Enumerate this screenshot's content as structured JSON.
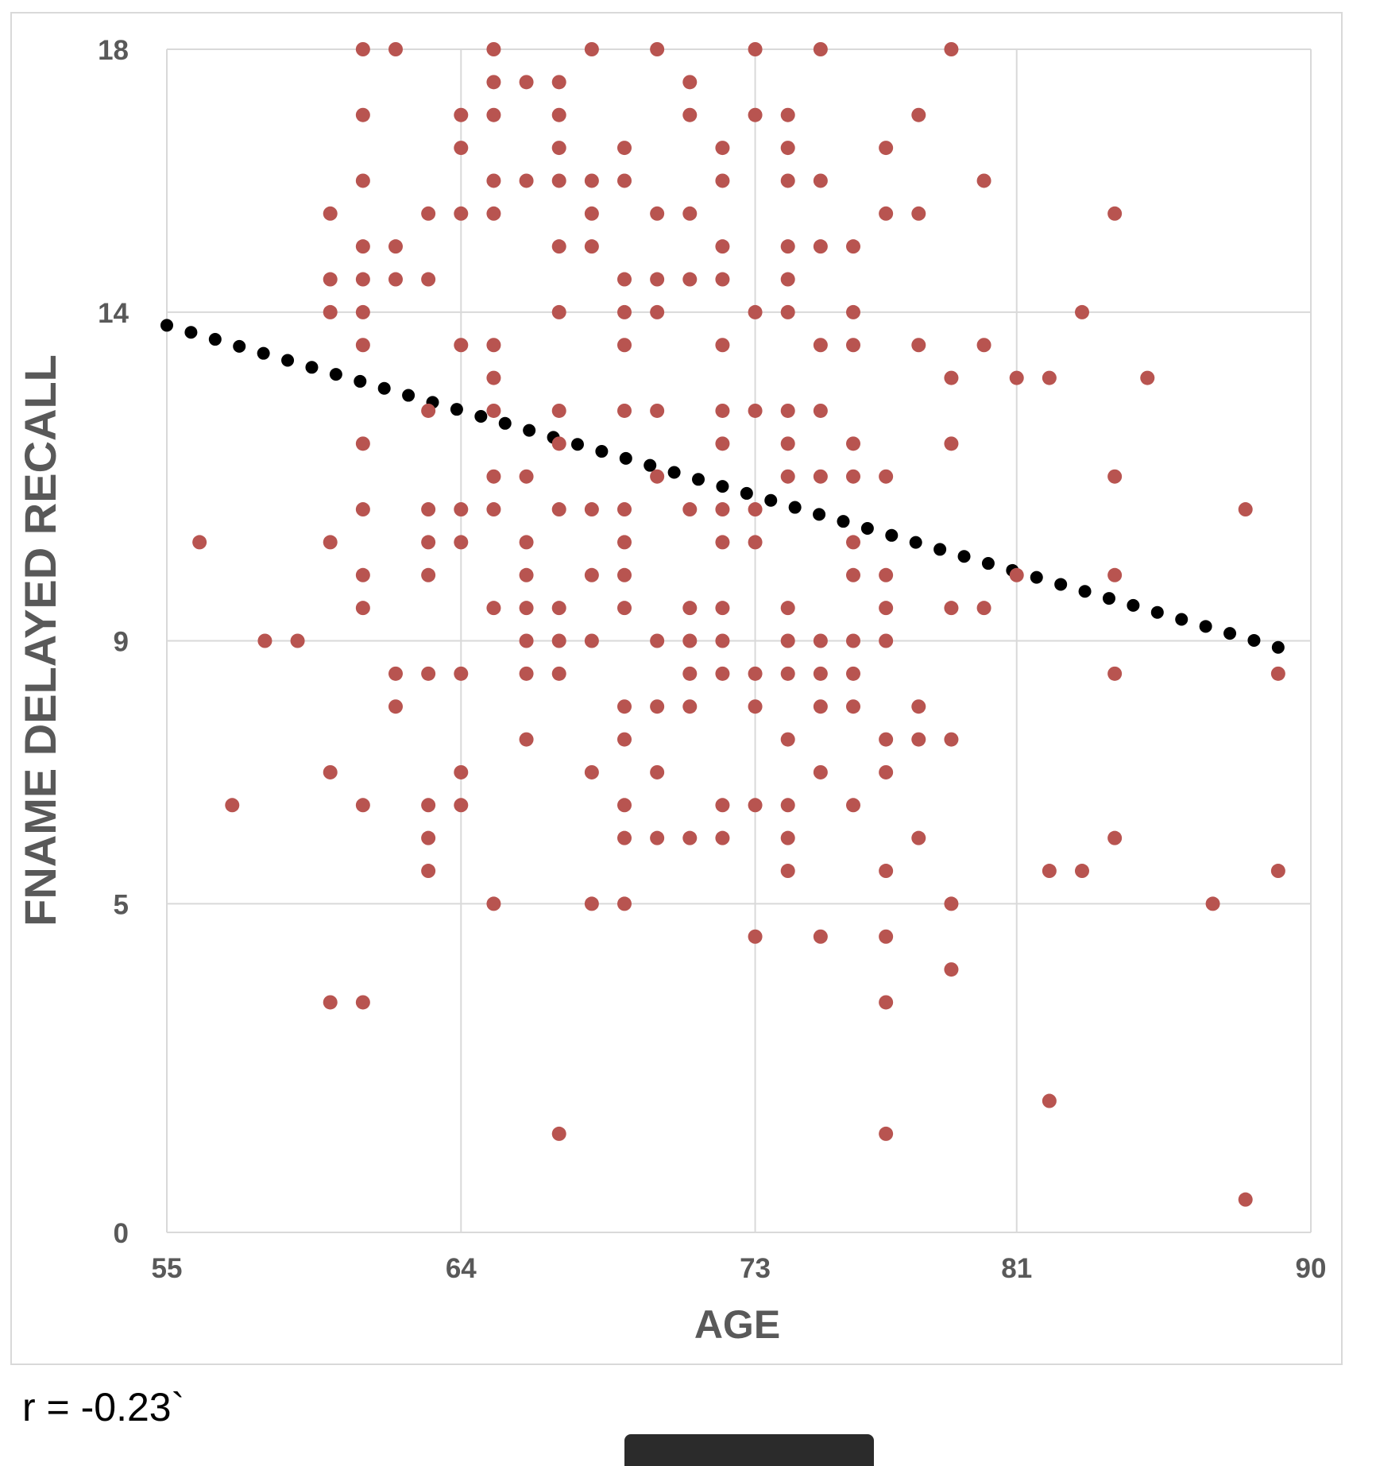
{
  "chart_data": {
    "type": "scatter",
    "title": "",
    "xlabel": "AGE",
    "ylabel": "FNAME DELAYED RECALL",
    "xlim": [
      55,
      90
    ],
    "ylim": [
      0,
      18
    ],
    "x_ticks": [
      "55",
      "64",
      "73",
      "81",
      "90"
    ],
    "y_ticks": [
      "0",
      "5",
      "9",
      "14",
      "18"
    ],
    "grid": true,
    "legend": "none",
    "series": [
      {
        "marker_color": "#b85450",
        "points": [
          [
            56,
            10.5
          ],
          [
            57,
            6.5
          ],
          [
            58,
            9
          ],
          [
            59,
            9
          ],
          [
            60,
            15.5
          ],
          [
            60,
            14.5
          ],
          [
            60,
            14
          ],
          [
            60,
            10.5
          ],
          [
            60,
            7
          ],
          [
            60,
            3.5
          ],
          [
            61,
            18
          ],
          [
            61,
            17
          ],
          [
            61,
            16
          ],
          [
            61,
            15
          ],
          [
            61,
            14.5
          ],
          [
            61,
            14
          ],
          [
            61,
            13.5
          ],
          [
            61,
            12
          ],
          [
            61,
            11
          ],
          [
            61,
            10
          ],
          [
            61,
            9.5
          ],
          [
            61,
            6.5
          ],
          [
            61,
            3.5
          ],
          [
            62,
            18
          ],
          [
            62,
            15
          ],
          [
            62,
            14.5
          ],
          [
            62,
            8.5
          ],
          [
            62,
            8
          ],
          [
            63,
            15.5
          ],
          [
            63,
            14.5
          ],
          [
            63,
            12.5
          ],
          [
            63,
            11
          ],
          [
            63,
            10.5
          ],
          [
            63,
            10
          ],
          [
            63,
            8.5
          ],
          [
            63,
            6.5
          ],
          [
            63,
            6
          ],
          [
            63,
            5.5
          ],
          [
            64,
            17
          ],
          [
            64,
            16.5
          ],
          [
            64,
            15.5
          ],
          [
            64,
            13.5
          ],
          [
            64,
            11
          ],
          [
            64,
            10.5
          ],
          [
            64,
            8.5
          ],
          [
            64,
            7
          ],
          [
            64,
            6.5
          ],
          [
            65,
            18
          ],
          [
            65,
            17.5
          ],
          [
            65,
            17
          ],
          [
            65,
            16
          ],
          [
            65,
            15.5
          ],
          [
            65,
            13.5
          ],
          [
            65,
            13
          ],
          [
            65,
            12.5
          ],
          [
            65,
            11.5
          ],
          [
            65,
            11
          ],
          [
            65,
            9.5
          ],
          [
            65,
            5
          ],
          [
            66,
            17.5
          ],
          [
            66,
            16
          ],
          [
            66,
            11.5
          ],
          [
            66,
            10.5
          ],
          [
            66,
            10
          ],
          [
            66,
            9.5
          ],
          [
            66,
            9
          ],
          [
            66,
            8.5
          ],
          [
            66,
            7.5
          ],
          [
            67,
            17.5
          ],
          [
            67,
            17
          ],
          [
            67,
            16.5
          ],
          [
            67,
            16
          ],
          [
            67,
            15
          ],
          [
            67,
            14
          ],
          [
            67,
            12.5
          ],
          [
            67,
            12
          ],
          [
            67,
            11
          ],
          [
            67,
            9.5
          ],
          [
            67,
            9
          ],
          [
            67,
            8.5
          ],
          [
            67,
            1.5
          ],
          [
            68,
            18
          ],
          [
            68,
            16
          ],
          [
            68,
            15.5
          ],
          [
            68,
            15
          ],
          [
            68,
            11
          ],
          [
            68,
            10
          ],
          [
            68,
            9
          ],
          [
            68,
            7
          ],
          [
            68,
            5
          ],
          [
            69,
            16.5
          ],
          [
            69,
            16
          ],
          [
            69,
            14.5
          ],
          [
            69,
            14
          ],
          [
            69,
            13.5
          ],
          [
            69,
            12.5
          ],
          [
            69,
            11
          ],
          [
            69,
            10.5
          ],
          [
            69,
            10
          ],
          [
            69,
            9.5
          ],
          [
            69,
            8
          ],
          [
            69,
            7.5
          ],
          [
            69,
            6.5
          ],
          [
            69,
            6
          ],
          [
            69,
            5
          ],
          [
            70,
            18
          ],
          [
            70,
            15.5
          ],
          [
            70,
            14.5
          ],
          [
            70,
            14
          ],
          [
            70,
            12.5
          ],
          [
            70,
            11.5
          ],
          [
            70,
            9
          ],
          [
            70,
            8
          ],
          [
            70,
            7
          ],
          [
            70,
            6
          ],
          [
            71,
            17.5
          ],
          [
            71,
            17
          ],
          [
            71,
            15.5
          ],
          [
            71,
            14.5
          ],
          [
            71,
            11
          ],
          [
            71,
            9.5
          ],
          [
            71,
            9
          ],
          [
            71,
            8.5
          ],
          [
            71,
            8
          ],
          [
            71,
            6
          ],
          [
            72,
            16.5
          ],
          [
            72,
            16
          ],
          [
            72,
            15
          ],
          [
            72,
            14.5
          ],
          [
            72,
            13.5
          ],
          [
            72,
            12.5
          ],
          [
            72,
            12
          ],
          [
            72,
            11
          ],
          [
            72,
            10.5
          ],
          [
            72,
            9.5
          ],
          [
            72,
            9
          ],
          [
            72,
            8.5
          ],
          [
            72,
            6.5
          ],
          [
            72,
            6
          ],
          [
            73,
            18
          ],
          [
            73,
            17
          ],
          [
            73,
            14
          ],
          [
            73,
            12.5
          ],
          [
            73,
            11
          ],
          [
            73,
            10.5
          ],
          [
            73,
            8.5
          ],
          [
            73,
            8
          ],
          [
            73,
            6.5
          ],
          [
            73,
            4.5
          ],
          [
            74,
            17
          ],
          [
            74,
            16.5
          ],
          [
            74,
            16
          ],
          [
            74,
            15
          ],
          [
            74,
            14.5
          ],
          [
            74,
            14
          ],
          [
            74,
            12.5
          ],
          [
            74,
            12
          ],
          [
            74,
            11.5
          ],
          [
            74,
            9.5
          ],
          [
            74,
            9
          ],
          [
            74,
            8.5
          ],
          [
            74,
            7.5
          ],
          [
            74,
            6.5
          ],
          [
            74,
            6
          ],
          [
            74,
            5.5
          ],
          [
            75,
            18
          ],
          [
            75,
            16
          ],
          [
            75,
            15
          ],
          [
            75,
            13.5
          ],
          [
            75,
            12.5
          ],
          [
            75,
            11.5
          ],
          [
            75,
            9
          ],
          [
            75,
            8.5
          ],
          [
            75,
            8
          ],
          [
            75,
            7
          ],
          [
            75,
            4.5
          ],
          [
            76,
            15
          ],
          [
            76,
            14
          ],
          [
            76,
            13.5
          ],
          [
            76,
            12
          ],
          [
            76,
            11.5
          ],
          [
            76,
            10.5
          ],
          [
            76,
            10
          ],
          [
            76,
            9
          ],
          [
            76,
            8.5
          ],
          [
            76,
            8
          ],
          [
            76,
            6.5
          ],
          [
            77,
            16.5
          ],
          [
            77,
            15.5
          ],
          [
            77,
            11.5
          ],
          [
            77,
            10
          ],
          [
            77,
            9.5
          ],
          [
            77,
            9
          ],
          [
            77,
            7.5
          ],
          [
            77,
            7
          ],
          [
            77,
            5.5
          ],
          [
            77,
            4.5
          ],
          [
            77,
            3.5
          ],
          [
            77,
            1.5
          ],
          [
            78,
            17
          ],
          [
            78,
            15.5
          ],
          [
            78,
            13.5
          ],
          [
            78,
            8
          ],
          [
            78,
            7.5
          ],
          [
            78,
            6
          ],
          [
            79,
            18
          ],
          [
            79,
            13
          ],
          [
            79,
            12
          ],
          [
            79,
            9.5
          ],
          [
            79,
            7.5
          ],
          [
            79,
            5
          ],
          [
            79,
            4
          ],
          [
            80,
            16
          ],
          [
            80,
            13.5
          ],
          [
            80,
            9.5
          ],
          [
            81,
            13
          ],
          [
            81,
            10
          ],
          [
            82,
            13
          ],
          [
            82,
            5.5
          ],
          [
            82,
            2
          ],
          [
            83,
            14
          ],
          [
            83,
            5.5
          ],
          [
            84,
            15.5
          ],
          [
            84,
            11.5
          ],
          [
            84,
            10
          ],
          [
            84,
            8.5
          ],
          [
            84,
            6
          ],
          [
            85,
            13
          ],
          [
            87,
            5
          ],
          [
            88,
            11
          ],
          [
            88,
            0.5
          ],
          [
            89,
            8.5
          ],
          [
            89,
            5.5
          ]
        ]
      }
    ],
    "trendline": {
      "style": "dotted",
      "color": "#000000",
      "x": [
        55,
        89
      ],
      "y": [
        13.8,
        8.9
      ]
    }
  },
  "annotation": {
    "correlation_text": "r = -0.23`"
  }
}
